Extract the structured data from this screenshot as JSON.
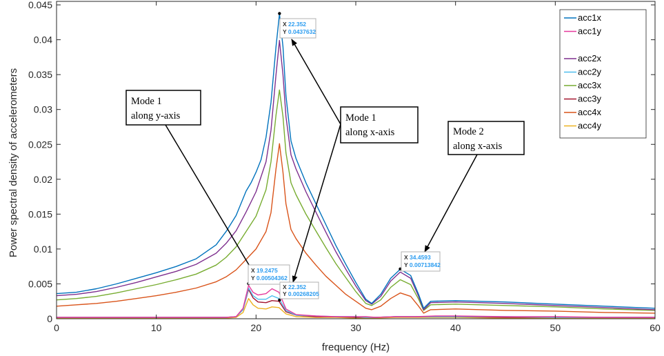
{
  "chart_data": {
    "type": "line",
    "title": "",
    "xlabel": "frequency (Hz)",
    "ylabel": "Power spectral density of accelerometers",
    "xlim": [
      0,
      60
    ],
    "ylim": [
      0,
      0.0455
    ],
    "xticks": [
      0,
      10,
      20,
      30,
      40,
      50,
      60
    ],
    "xtick_labels": [
      "0",
      "10",
      "20",
      "30",
      "40",
      "50",
      "60"
    ],
    "yticks": [
      0,
      0.005,
      0.01,
      0.015,
      0.02,
      0.025,
      0.03,
      0.035,
      0.04,
      0.045
    ],
    "ytick_labels": [
      "0",
      "0.005",
      "0.01",
      "0.015",
      "0.02",
      "0.025",
      "0.03",
      "0.035",
      "0.04",
      "0.045"
    ],
    "grid": false,
    "legend_position": "top-right",
    "series": [
      {
        "name": "acc1x",
        "color": "#0072bd",
        "x": [
          0,
          2,
          4,
          6,
          8,
          10,
          12,
          14,
          16,
          17,
          18,
          19,
          19.5,
          20,
          20.5,
          21,
          21.5,
          22,
          22.35,
          22.7,
          23,
          23.5,
          24,
          25,
          26,
          27,
          28,
          29,
          30,
          31,
          31.6,
          32.5,
          33.5,
          34.46,
          35.5,
          36.3,
          36.8,
          37.5,
          40,
          45,
          50,
          55,
          60
        ],
        "y": [
          0.0036,
          0.0038,
          0.0043,
          0.005,
          0.0058,
          0.0066,
          0.0075,
          0.0086,
          0.0106,
          0.0125,
          0.0148,
          0.0183,
          0.0195,
          0.021,
          0.0228,
          0.026,
          0.031,
          0.039,
          0.0437,
          0.039,
          0.032,
          0.0255,
          0.023,
          0.0195,
          0.0165,
          0.0135,
          0.0105,
          0.0078,
          0.0052,
          0.0028,
          0.0022,
          0.0035,
          0.0058,
          0.0071,
          0.0062,
          0.0035,
          0.0015,
          0.0025,
          0.0026,
          0.0024,
          0.0021,
          0.0018,
          0.0015
        ]
      },
      {
        "name": "acc1y",
        "color": "#e6399b",
        "x": [
          0,
          2,
          5,
          10,
          15,
          17,
          18,
          18.7,
          19.25,
          19.7,
          20.2,
          21,
          21.6,
          22.3,
          23,
          24,
          26,
          28,
          30,
          31,
          32,
          34,
          36,
          38,
          40,
          45,
          50,
          55,
          60
        ],
        "y": [
          0.0002,
          0.0002,
          0.0002,
          0.0002,
          0.0002,
          0.0002,
          0.0003,
          0.0015,
          0.0048,
          0.0038,
          0.0034,
          0.0036,
          0.0043,
          0.0038,
          0.0014,
          0.0006,
          0.0004,
          0.0003,
          0.0003,
          0.0003,
          0.0002,
          0.0003,
          0.0003,
          0.0004,
          0.0004,
          0.0003,
          0.0003,
          0.0002,
          0.0002
        ]
      },
      {
        "name": "acc2x",
        "color": "#7e2f8e",
        "x": [
          0,
          2,
          4,
          6,
          8,
          10,
          12,
          14,
          16,
          17,
          18,
          19,
          20,
          21,
          21.5,
          22,
          22.35,
          22.7,
          23,
          23.5,
          24,
          25,
          26,
          27,
          28,
          29,
          30,
          31,
          31.6,
          32.5,
          33.5,
          34.46,
          35.5,
          36.3,
          36.8,
          37.5,
          40,
          45,
          50,
          55,
          60
        ],
        "y": [
          0.0033,
          0.0035,
          0.0039,
          0.0045,
          0.0052,
          0.006,
          0.0068,
          0.0078,
          0.0094,
          0.0108,
          0.0126,
          0.0153,
          0.0182,
          0.0225,
          0.027,
          0.035,
          0.0399,
          0.035,
          0.029,
          0.0235,
          0.0215,
          0.0182,
          0.0153,
          0.0124,
          0.0096,
          0.0071,
          0.0047,
          0.0026,
          0.0021,
          0.0032,
          0.0054,
          0.0067,
          0.0058,
          0.0032,
          0.0013,
          0.0023,
          0.0024,
          0.0022,
          0.0019,
          0.0016,
          0.0013
        ]
      },
      {
        "name": "acc2y",
        "color": "#4dbeee",
        "x": [
          0,
          2,
          5,
          10,
          15,
          17,
          18,
          18.7,
          19.25,
          19.7,
          20.2,
          21,
          21.6,
          22.3,
          23,
          24,
          26,
          28,
          30,
          31,
          32,
          34,
          36,
          38,
          40,
          45,
          50,
          55,
          60
        ],
        "y": [
          0.0002,
          0.0002,
          0.0002,
          0.0002,
          0.0002,
          0.0002,
          0.0003,
          0.0013,
          0.0044,
          0.0033,
          0.0028,
          0.0028,
          0.0033,
          0.0029,
          0.0012,
          0.0005,
          0.0004,
          0.0003,
          0.0003,
          0.0002,
          0.0002,
          0.0003,
          0.0003,
          0.0003,
          0.0003,
          0.0003,
          0.0002,
          0.0002,
          0.0002
        ]
      },
      {
        "name": "acc3x",
        "color": "#77ac30",
        "x": [
          0,
          2,
          4,
          6,
          8,
          10,
          12,
          14,
          16,
          17,
          18,
          19,
          20,
          21,
          21.5,
          22,
          22.35,
          22.7,
          23,
          23.5,
          24,
          25,
          26,
          27,
          28,
          29,
          30,
          31,
          31.6,
          32.5,
          33.5,
          34.46,
          35.5,
          36.3,
          36.8,
          37.5,
          40,
          45,
          50,
          55,
          60
        ],
        "y": [
          0.0027,
          0.0029,
          0.0032,
          0.0037,
          0.0043,
          0.0049,
          0.0056,
          0.0064,
          0.0077,
          0.0088,
          0.0103,
          0.0125,
          0.0147,
          0.0185,
          0.0225,
          0.0292,
          0.0328,
          0.029,
          0.0238,
          0.0195,
          0.0178,
          0.015,
          0.0126,
          0.0102,
          0.0079,
          0.0059,
          0.0039,
          0.0022,
          0.0019,
          0.0027,
          0.0045,
          0.0056,
          0.0049,
          0.0028,
          0.0012,
          0.002,
          0.0021,
          0.0019,
          0.0017,
          0.0014,
          0.0012
        ]
      },
      {
        "name": "acc3y",
        "color": "#a2142f",
        "x": [
          0,
          2,
          5,
          10,
          15,
          17,
          18,
          18.7,
          19.25,
          19.7,
          20.2,
          21,
          21.6,
          22.3,
          23,
          24,
          26,
          28,
          30,
          31,
          32,
          34,
          36,
          38,
          40,
          45,
          50,
          55,
          60
        ],
        "y": [
          0.0002,
          0.0002,
          0.0002,
          0.0002,
          0.0002,
          0.0002,
          0.0003,
          0.0013,
          0.0042,
          0.003,
          0.0024,
          0.0023,
          0.0026,
          0.0025,
          0.001,
          0.0005,
          0.0003,
          0.0003,
          0.0002,
          0.0002,
          0.0002,
          0.0003,
          0.0003,
          0.0003,
          0.0003,
          0.0002,
          0.0002,
          0.0002,
          0.0002
        ]
      },
      {
        "name": "acc4x",
        "color": "#d95319",
        "x": [
          0,
          2,
          4,
          6,
          8,
          10,
          12,
          14,
          16,
          17,
          18,
          19,
          20,
          21,
          21.5,
          22,
          22.35,
          22.7,
          23,
          23.5,
          24,
          25,
          26,
          27,
          28,
          29,
          30,
          31,
          31.6,
          32.5,
          33.5,
          34.46,
          35.5,
          36.3,
          36.8,
          37.5,
          40,
          45,
          50,
          55,
          60
        ],
        "y": [
          0.0018,
          0.002,
          0.0022,
          0.0025,
          0.0029,
          0.0033,
          0.0038,
          0.0044,
          0.0053,
          0.006,
          0.007,
          0.0085,
          0.01,
          0.0125,
          0.0152,
          0.0215,
          0.0251,
          0.021,
          0.0165,
          0.0128,
          0.0115,
          0.0094,
          0.0077,
          0.0061,
          0.0048,
          0.0035,
          0.0025,
          0.0015,
          0.0013,
          0.0018,
          0.0029,
          0.0037,
          0.0032,
          0.0018,
          0.0008,
          0.0013,
          0.0014,
          0.0012,
          0.0011,
          0.0009,
          0.0008
        ]
      },
      {
        "name": "acc4y",
        "color": "#edb120",
        "x": [
          0,
          2,
          5,
          10,
          15,
          17,
          18,
          18.7,
          19.25,
          19.7,
          20.2,
          21,
          21.6,
          22.3,
          23,
          24,
          26,
          28,
          30,
          31,
          32,
          34,
          36,
          38,
          40,
          45,
          50,
          55,
          60
        ],
        "y": [
          0.0001,
          0.0001,
          0.0001,
          0.0001,
          0.0001,
          0.0001,
          0.0002,
          0.0009,
          0.0029,
          0.002,
          0.0015,
          0.0014,
          0.0017,
          0.0016,
          0.0007,
          0.0003,
          0.0002,
          0.0002,
          0.0001,
          0.0001,
          0.0001,
          0.0002,
          0.0002,
          0.0002,
          0.0002,
          0.0001,
          0.0001,
          0.0001,
          0.0001
        ]
      }
    ],
    "legend_groups": [
      [
        "acc1x",
        "acc1y"
      ],
      [
        "acc2x",
        "acc2y",
        "acc3x",
        "acc3y",
        "acc4x",
        "acc4y"
      ]
    ],
    "datatips": [
      {
        "x": 22.352,
        "y": 0.0437632,
        "x_text": "22.352",
        "y_text": "0.0437632"
      },
      {
        "x": 34.4593,
        "y": 0.00713842,
        "x_text": "34.4593",
        "y_text": "0.00713842"
      },
      {
        "x": 19.2475,
        "y": 0.00504362,
        "x_text": "19.2475",
        "y_text": "0.00504362"
      },
      {
        "x": 22.352,
        "y": 0.00268205,
        "x_text": "22.352",
        "y_text": "0.00268205"
      }
    ],
    "annotations": [
      {
        "lines": [
          "Mode 1",
          "along y-axis"
        ],
        "points_to": "19.2475 Hz"
      },
      {
        "lines": [
          "Mode 1",
          "along x-axis"
        ],
        "points_to": "22.352 Hz"
      },
      {
        "lines": [
          "Mode 2",
          "along x-axis"
        ],
        "points_to": "34.4593 Hz"
      }
    ]
  }
}
